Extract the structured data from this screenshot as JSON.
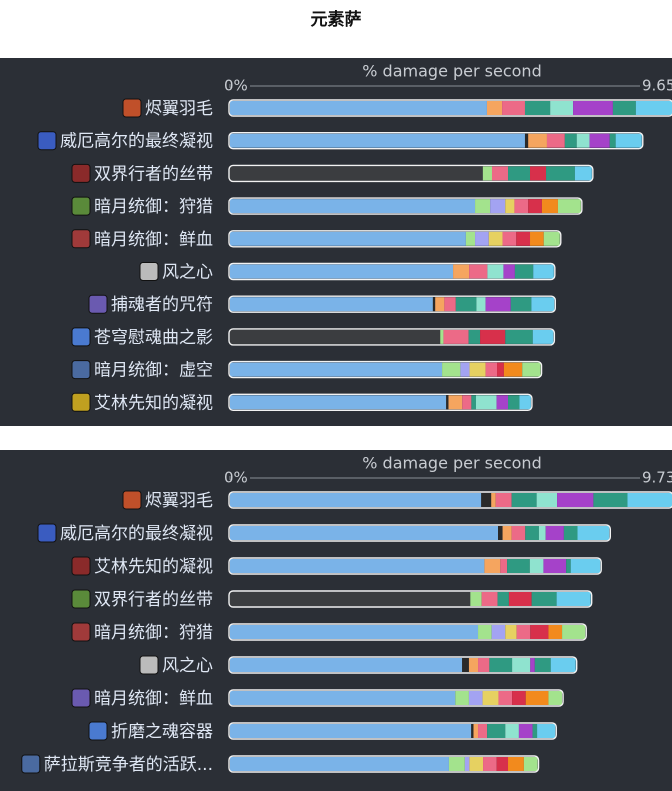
{
  "title": "元素萨",
  "chart_data": [
    {
      "type": "bar",
      "title": "% damage per second",
      "xlim": [
        0,
        9.65
      ],
      "xticks": [
        {
          "value": 0,
          "label": "0%"
        },
        9.65
      ],
      "categories": [
        "烬翼羽毛",
        "威厄高尔的最终凝视",
        "双界行者的丝带",
        "暗月统御：狩猎",
        "暗月统御：鲜血",
        "风之心",
        "捕魂者的咒符",
        "苍穹慰魂曲之影",
        "暗月统御：虚空",
        "艾林先知的凝视"
      ],
      "segments": [
        [
          5.61,
          0.33,
          0.5,
          0.55,
          0.5,
          0.87,
          0.5,
          0.79
        ],
        [
          6.44,
          0.07,
          0.41,
          0.39,
          0.26,
          0.28,
          0.44,
          0.13,
          0.57
        ],
        [
          5.52,
          0.2,
          0.35,
          0.48,
          0.35,
          0.63,
          0.37
        ],
        [
          5.35,
          0.33,
          0.33,
          0.2,
          0.3,
          0.3,
          0.35,
          0.5
        ],
        [
          5.15,
          0.2,
          0.3,
          0.3,
          0.3,
          0.3,
          0.3,
          0.35
        ],
        [
          4.87,
          0.35,
          0.4,
          0.35,
          0.25,
          0.4,
          0.45
        ],
        [
          4.43,
          0.05,
          0.2,
          0.25,
          0.45,
          0.2,
          0.55,
          0.45,
          0.5
        ],
        [
          4.59,
          0.07,
          0.55,
          0.25,
          0.55,
          0.6,
          0.45
        ],
        [
          4.63,
          0.4,
          0.2,
          0.35,
          0.25,
          0.15,
          0.4,
          0.4
        ],
        [
          4.72,
          0.05,
          0.3,
          0.2,
          0.1,
          0.45,
          0.25,
          0.25,
          0.25
        ]
      ],
      "segment_colors": [
        [
          "#7ab3e8",
          "#f5a55f",
          "#ec6a87",
          "#2f9a82",
          "#8fe3cf",
          "#a542c9",
          "#2f9a82",
          "#6acdef"
        ],
        [
          "#7ab3e8",
          "#2a2a2a",
          "#f5a55f",
          "#ec6a87",
          "#2f9a82",
          "#8fe3cf",
          "#a542c9",
          "#2f9a82",
          "#6acdef"
        ],
        [
          "#3b3d40",
          "#a3e38d",
          "#ec6a87",
          "#2f9a82",
          "#d7304b",
          "#2f9a82",
          "#6acdef"
        ],
        [
          "#7ab3e8",
          "#a3e38d",
          "#a3a3f2",
          "#e6d161",
          "#ec6a87",
          "#d7304b",
          "#f28a1d",
          "#a3e38d"
        ],
        [
          "#7ab3e8",
          "#a3e38d",
          "#a3a3f2",
          "#e6d161",
          "#ec6a87",
          "#d7304b",
          "#f28a1d",
          "#a3e38d"
        ],
        [
          "#7ab3e8",
          "#f5a55f",
          "#ec6a87",
          "#8fe3cf",
          "#a542c9",
          "#2f9a82",
          "#6acdef"
        ],
        [
          "#7ab3e8",
          "#2a2a2a",
          "#f5a55f",
          "#ec6a87",
          "#2f9a82",
          "#8fe3cf",
          "#a542c9",
          "#2f9a82",
          "#6acdef"
        ],
        [
          "#3b3d40",
          "#a3e38d",
          "#ec6a87",
          "#2f9a82",
          "#d7304b",
          "#2f9a82",
          "#6acdef"
        ],
        [
          "#7ab3e8",
          "#a3e38d",
          "#a3a3f2",
          "#e6d161",
          "#ec6a87",
          "#d7304b",
          "#f28a1d",
          "#a3e38d"
        ],
        [
          "#7ab3e8",
          "#2a2a2a",
          "#f5a55f",
          "#ec6a87",
          "#2f9a82",
          "#8fe3cf",
          "#a542c9",
          "#2f9a82",
          "#6acdef"
        ]
      ]
    },
    {
      "type": "bar",
      "title": "% damage per second",
      "xlim": [
        0,
        9.73
      ],
      "xticks": [
        {
          "value": 0,
          "label": "0%"
        },
        9.73
      ],
      "categories": [
        "烬翼羽毛",
        "威厄高尔的最终凝视",
        "艾林先知的凝视",
        "双界行者的丝带",
        "暗月统御：狩猎",
        "风之心",
        "暗月统御：鲜血",
        "折磨之魂容器",
        "萨拉斯竞争者的活跃..."
      ],
      "segments": [
        [
          5.53,
          0.22,
          0.1,
          0.35,
          0.55,
          0.45,
          0.8,
          0.75,
          0.98
        ],
        [
          5.9,
          0.1,
          0.2,
          0.3,
          0.3,
          0.15,
          0.4,
          0.3,
          0.7
        ],
        [
          5.6,
          0.35,
          0.15,
          0.5,
          0.3,
          0.5,
          0.1,
          0.65
        ],
        [
          5.29,
          0.25,
          0.35,
          0.25,
          0.5,
          0.55,
          0.75
        ],
        [
          5.46,
          0.3,
          0.3,
          0.25,
          0.3,
          0.4,
          0.3,
          0.51
        ],
        [
          5.11,
          0.15,
          0.2,
          0.25,
          0.5,
          0.4,
          0.1,
          0.35,
          0.55
        ],
        [
          4.96,
          0.3,
          0.3,
          0.35,
          0.3,
          0.3,
          0.5,
          0.3
        ],
        [
          5.31,
          0.05,
          0.1,
          0.2,
          0.4,
          0.3,
          0.3,
          0.1,
          0.4
        ],
        [
          4.82,
          0.35,
          0.1,
          0.3,
          0.3,
          0.25,
          0.35,
          0.3
        ]
      ],
      "segment_colors": [
        [
          "#7ab3e8",
          "#2a2a2a",
          "#f5a55f",
          "#ec6a87",
          "#2f9a82",
          "#8fe3cf",
          "#a542c9",
          "#2f9a82",
          "#6acdef"
        ],
        [
          "#7ab3e8",
          "#2a2a2a",
          "#f5a55f",
          "#ec6a87",
          "#2f9a82",
          "#8fe3cf",
          "#a542c9",
          "#2f9a82",
          "#6acdef"
        ],
        [
          "#7ab3e8",
          "#f5a55f",
          "#ec6a87",
          "#2f9a82",
          "#8fe3cf",
          "#a542c9",
          "#2f9a82",
          "#6acdef"
        ],
        [
          "#3b3d40",
          "#a3e38d",
          "#ec6a87",
          "#2f9a82",
          "#d7304b",
          "#2f9a82",
          "#6acdef"
        ],
        [
          "#7ab3e8",
          "#a3e38d",
          "#a3a3f2",
          "#e6d161",
          "#ec6a87",
          "#d7304b",
          "#f28a1d",
          "#a3e38d"
        ],
        [
          "#7ab3e8",
          "#2a2a2a",
          "#f5a55f",
          "#ec6a87",
          "#2f9a82",
          "#8fe3cf",
          "#a542c9",
          "#2f9a82",
          "#6acdef"
        ],
        [
          "#7ab3e8",
          "#a3e38d",
          "#a3a3f2",
          "#e6d161",
          "#ec6a87",
          "#d7304b",
          "#f28a1d",
          "#a3e38d"
        ],
        [
          "#7ab3e8",
          "#2a2a2a",
          "#f5a55f",
          "#ec6a87",
          "#2f9a82",
          "#8fe3cf",
          "#a542c9",
          "#2f9a82",
          "#6acdef"
        ],
        [
          "#7ab3e8",
          "#a3e38d",
          "#a3a3f2",
          "#e6d161",
          "#ec6a87",
          "#d7304b",
          "#f28a1d",
          "#a3e38d"
        ]
      ]
    }
  ]
}
